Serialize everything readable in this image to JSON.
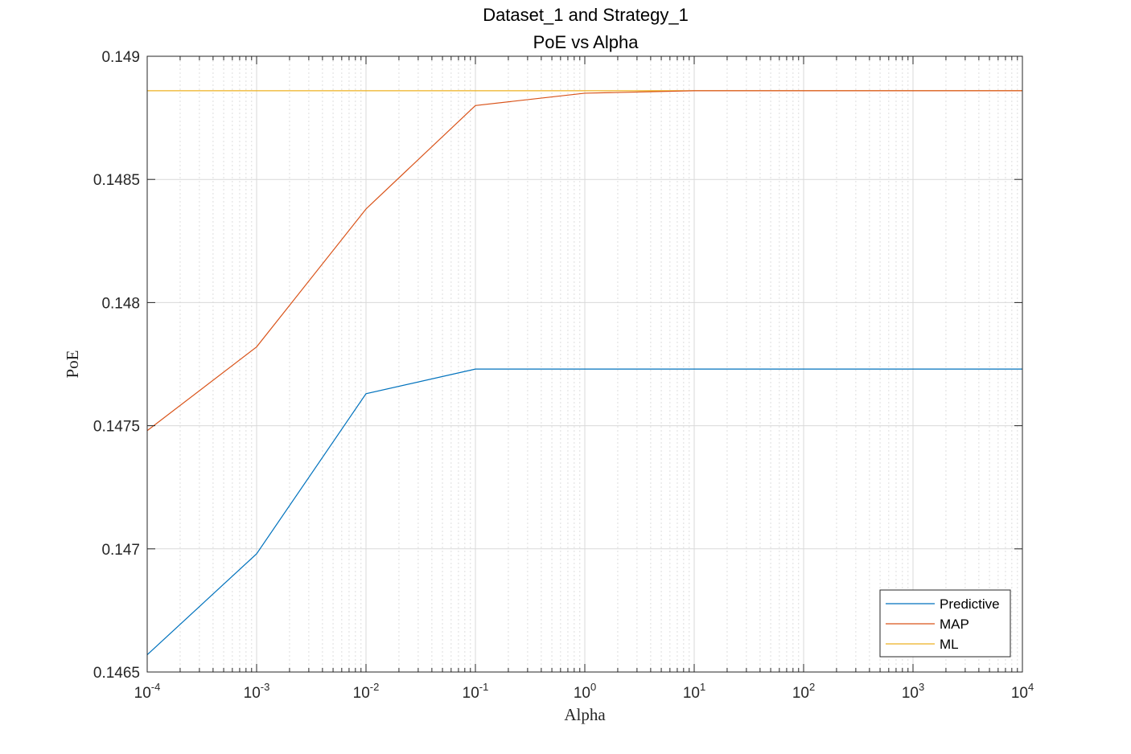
{
  "chart_data": {
    "type": "line",
    "title": "Dataset_1 and Strategy_1",
    "subtitle": "PoE vs Alpha",
    "xlabel": "Alpha",
    "ylabel": "PoE",
    "xscale": "log",
    "xlim": [
      0.0001,
      10000
    ],
    "ylim": [
      0.1465,
      0.149
    ],
    "x_ticks": [
      0.0001,
      0.001,
      0.01,
      0.1,
      1,
      10,
      100,
      1000,
      10000
    ],
    "x_tick_labels": [
      {
        "base": "10",
        "exp": "-4"
      },
      {
        "base": "10",
        "exp": "-3"
      },
      {
        "base": "10",
        "exp": "-2"
      },
      {
        "base": "10",
        "exp": "-1"
      },
      {
        "base": "10",
        "exp": "0"
      },
      {
        "base": "10",
        "exp": "1"
      },
      {
        "base": "10",
        "exp": "2"
      },
      {
        "base": "10",
        "exp": "3"
      },
      {
        "base": "10",
        "exp": "4"
      }
    ],
    "y_ticks": [
      0.1465,
      0.147,
      0.1475,
      0.148,
      0.1485,
      0.149
    ],
    "y_tick_labels": [
      "0.1465",
      "0.147",
      "0.1475",
      "0.148",
      "0.1485",
      "0.149"
    ],
    "grid": true,
    "legend_position": "bottom-right",
    "x": [
      0.0001,
      0.001,
      0.01,
      0.1,
      1,
      10,
      100,
      1000,
      10000
    ],
    "series": [
      {
        "name": "Predictive",
        "color": "#0072BD",
        "values": [
          0.14657,
          0.14698,
          0.14763,
          0.14773,
          0.14773,
          0.14773,
          0.14773,
          0.14773,
          0.14773
        ]
      },
      {
        "name": "MAP",
        "color": "#D95319",
        "values": [
          0.14748,
          0.14782,
          0.14838,
          0.1488,
          0.14885,
          0.14886,
          0.14886,
          0.14886,
          0.14886
        ]
      },
      {
        "name": "ML",
        "color": "#EDB120",
        "values": [
          0.14886,
          0.14886,
          0.14886,
          0.14886,
          0.14886,
          0.14886,
          0.14886,
          0.14886,
          0.14886
        ]
      }
    ]
  }
}
